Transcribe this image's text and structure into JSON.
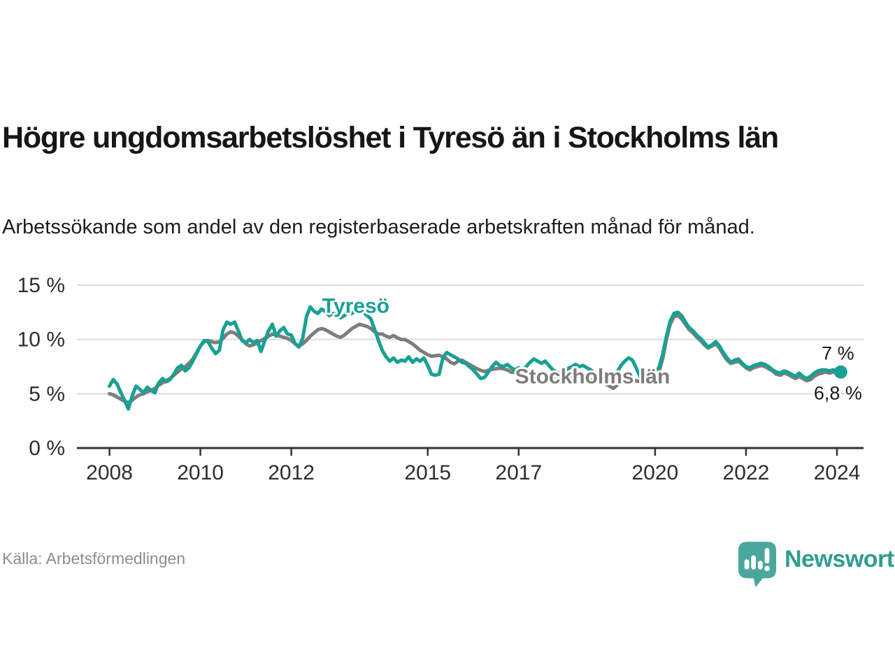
{
  "header": {
    "title": "Högre ungdomsarbetslöshet i Tyresö än i Stockholms län",
    "subtitle": "Arbetssökande som andel av den registerbaserade arbetskraften månad för månad."
  },
  "footer": {
    "source": "Källa: Arbetsförmedlingen",
    "logo_text": "Newsworthy"
  },
  "colors": {
    "tyreso": "#18a193",
    "stockholm": "#7d7d7d",
    "grid": "#dcdcdc",
    "axis": "#333333",
    "tick_label": "#2e2e2e",
    "value_label": "#1a1a1a",
    "logo_mark": "#4ba69d",
    "logo_text": "#2f9c93",
    "halo": "#ffffff"
  },
  "chart_data": {
    "type": "line",
    "title": "",
    "xlabel": "",
    "ylabel": "",
    "x_unit": "year (monthly data)",
    "y_unit": "percent",
    "x_start": 2008.0,
    "x_step": 0.0833333,
    "xlim": [
      2007.2846,
      2024.5846
    ],
    "ylim": [
      0,
      16.3
    ],
    "x_ticks": [
      2008,
      2010,
      2012,
      2015,
      2017,
      2020,
      2022,
      2024
    ],
    "y_ticks": [
      0,
      5,
      10,
      15
    ],
    "y_tick_suffix": " %",
    "grid": "horizontal",
    "legend_position": "inline-labels",
    "series": [
      {
        "name": "Stockholms län",
        "color": "#7d7d7d",
        "end_label": "6,8 %",
        "end_dot": false,
        "values": [
          5.0,
          4.9,
          4.7,
          4.5,
          4.3,
          4.2,
          4.4,
          4.7,
          4.9,
          5.0,
          5.2,
          5.3,
          5.5,
          5.8,
          6.0,
          6.2,
          6.4,
          6.7,
          7.0,
          7.3,
          7.5,
          7.8,
          8.2,
          8.8,
          9.4,
          9.8,
          9.9,
          9.8,
          9.7,
          9.8,
          10.1,
          10.5,
          10.7,
          10.6,
          10.3,
          10.0,
          9.6,
          9.4,
          9.5,
          9.7,
          9.9,
          10.1,
          10.3,
          10.5,
          10.4,
          10.3,
          10.2,
          10.1,
          9.9,
          9.6,
          9.4,
          9.6,
          9.9,
          10.3,
          10.6,
          10.9,
          11.0,
          10.9,
          10.7,
          10.5,
          10.3,
          10.2,
          10.4,
          10.7,
          11.0,
          11.2,
          11.4,
          11.3,
          11.2,
          11.0,
          10.7,
          10.5,
          10.5,
          10.3,
          10.2,
          10.35,
          10.15,
          10.0,
          10.0,
          9.8,
          9.6,
          9.3,
          9.0,
          8.8,
          8.6,
          8.45,
          8.5,
          8.55,
          8.4,
          8.2,
          7.9,
          7.75,
          8.0,
          8.1,
          7.9,
          7.7,
          7.5,
          7.3,
          7.15,
          7.05,
          7.15,
          7.25,
          7.3,
          7.35,
          7.3,
          7.2,
          7.0,
          6.95,
          7.1,
          7.0,
          6.9,
          6.95,
          7.0,
          6.9,
          6.8,
          6.7,
          6.6,
          6.5,
          6.4,
          6.3,
          6.4,
          6.5,
          6.6,
          6.7,
          6.6,
          6.5,
          6.4,
          6.3,
          6.2,
          6.1,
          6.0,
          5.9,
          5.7,
          5.5,
          5.8,
          6.1,
          6.3,
          6.4,
          6.3,
          6.2,
          6.1,
          6.2,
          6.4,
          6.5,
          6.6,
          7.0,
          8.2,
          10.0,
          11.4,
          12.1,
          12.2,
          11.9,
          11.4,
          10.9,
          10.6,
          10.2,
          9.9,
          9.5,
          9.2,
          9.4,
          9.6,
          9.2,
          8.6,
          8.1,
          7.8,
          7.9,
          8.0,
          7.7,
          7.4,
          7.2,
          7.4,
          7.5,
          7.6,
          7.5,
          7.3,
          7.1,
          6.8,
          6.7,
          6.9,
          6.8,
          6.6,
          6.4,
          6.6,
          6.4,
          6.2,
          6.3,
          6.6,
          6.8,
          6.9,
          7.0,
          6.9,
          7.0,
          6.9,
          6.8
        ]
      },
      {
        "name": "Tyresö",
        "color": "#18a193",
        "end_label": "7 %",
        "end_dot": true,
        "values": [
          5.7,
          6.3,
          5.9,
          5.1,
          4.4,
          3.6,
          4.8,
          5.7,
          5.4,
          5.1,
          5.6,
          5.3,
          5.1,
          6.0,
          6.4,
          6.1,
          6.3,
          6.8,
          7.4,
          7.6,
          7.1,
          7.4,
          8.0,
          8.7,
          9.4,
          9.9,
          9.8,
          9.2,
          8.7,
          9.0,
          10.9,
          11.6,
          11.4,
          11.6,
          10.8,
          9.9,
          9.7,
          10.0,
          9.7,
          9.9,
          8.9,
          9.9,
          10.8,
          11.4,
          10.3,
          10.8,
          11.1,
          10.5,
          10.4,
          9.6,
          9.3,
          10.1,
          12.1,
          13.0,
          12.6,
          12.4,
          12.8,
          12.6,
          12.2,
          12.4,
          12.3,
          12.0,
          12.2,
          12.5,
          12.4,
          12.6,
          12.9,
          12.5,
          12.2,
          11.9,
          10.9,
          9.9,
          9.0,
          8.4,
          8.0,
          8.3,
          7.9,
          8.1,
          8.0,
          8.4,
          7.9,
          8.2,
          8.0,
          8.3,
          7.6,
          6.8,
          6.7,
          6.8,
          8.3,
          8.8,
          8.6,
          8.4,
          8.2,
          7.9,
          7.8,
          7.5,
          7.2,
          6.8,
          6.4,
          6.5,
          7.0,
          7.5,
          7.9,
          7.6,
          7.5,
          7.7,
          7.4,
          7.2,
          7.4,
          7.2,
          7.5,
          7.9,
          8.2,
          8.0,
          7.8,
          8.0,
          7.6,
          7.2,
          7.0,
          6.9,
          7.1,
          7.3,
          7.5,
          7.7,
          7.5,
          7.6,
          7.4,
          7.2,
          6.9,
          6.7,
          6.6,
          6.8,
          6.6,
          6.4,
          7.0,
          7.6,
          8.0,
          8.3,
          8.1,
          7.4,
          6.6,
          6.8,
          7.0,
          7.2,
          7.0,
          7.4,
          8.6,
          10.3,
          11.7,
          12.4,
          12.5,
          12.2,
          11.6,
          11.1,
          10.8,
          10.4,
          10.1,
          9.7,
          9.3,
          9.5,
          9.8,
          9.4,
          8.8,
          8.3,
          7.9,
          8.1,
          8.2,
          7.8,
          7.5,
          7.4,
          7.6,
          7.7,
          7.8,
          7.7,
          7.5,
          7.2,
          7.0,
          6.9,
          7.1,
          7.0,
          6.8,
          6.6,
          6.9,
          6.6,
          6.4,
          6.6,
          6.9,
          7.1,
          7.2,
          7.2,
          7.1,
          7.2,
          7.1,
          7.0
        ]
      }
    ],
    "annotations": [
      {
        "text": "Tyresö",
        "x": 2012.68,
        "y": 12.45,
        "color": "#18a193",
        "anchor": "start",
        "bold": true
      },
      {
        "text": "Stockholms län",
        "x": 2016.92,
        "y": 5.95,
        "color": "#7d7d7d",
        "anchor": "start",
        "bold": true
      }
    ]
  }
}
